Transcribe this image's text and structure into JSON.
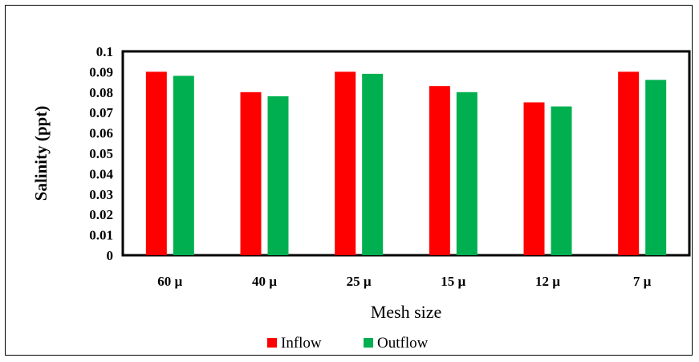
{
  "chart_data": {
    "type": "bar",
    "categories": [
      "60 µ",
      "40 µ",
      "25 µ",
      "15  µ",
      "12  µ",
      "7  µ"
    ],
    "series": [
      {
        "name": "Inflow",
        "color": "#ff0000",
        "values": [
          0.09,
          0.08,
          0.09,
          0.083,
          0.075,
          0.09
        ]
      },
      {
        "name": "Outflow",
        "color": "#00b050",
        "values": [
          0.088,
          0.078,
          0.089,
          0.08,
          0.073,
          0.086
        ]
      }
    ],
    "xlabel": "Mesh size",
    "ylabel": "Salinity (ppt)",
    "ylim": [
      0,
      0.1
    ],
    "yticks": [
      "0",
      "0.01",
      "0.02",
      "0.03",
      "0.04",
      "0.05",
      "0.06",
      "0.07",
      "0.08",
      "0.09",
      "0.1"
    ],
    "grid": false,
    "legend": "bottom"
  }
}
